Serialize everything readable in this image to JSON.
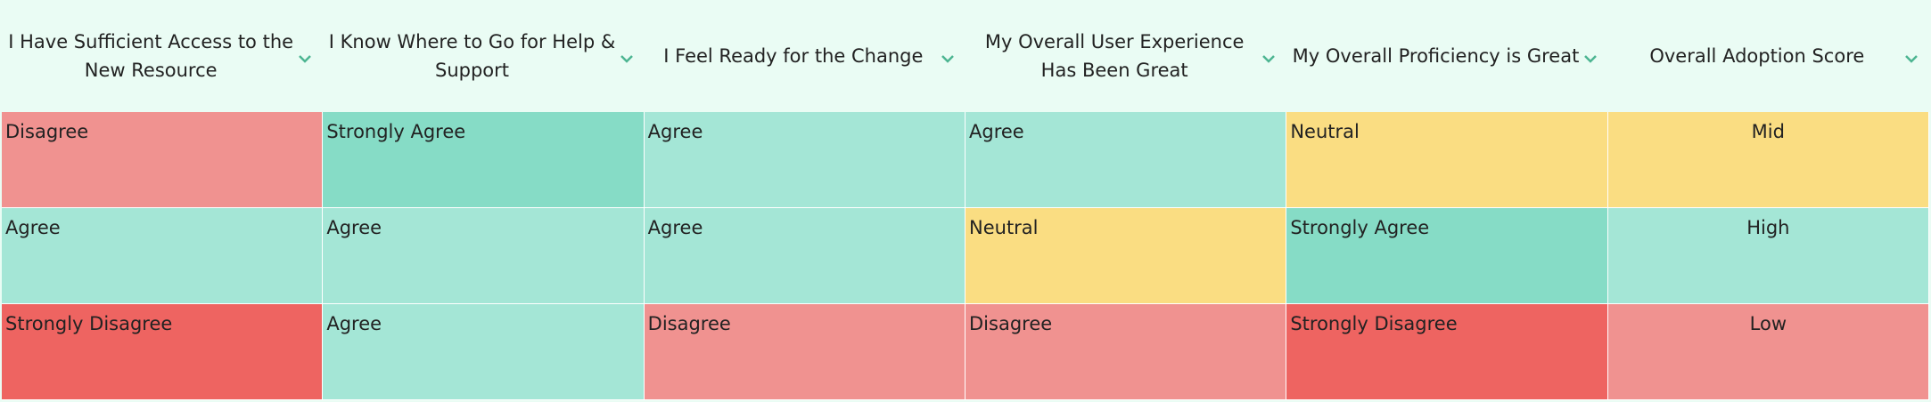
{
  "header": {
    "columns": [
      "I Have Sufficient Access to the New Resource",
      "I Know Where to Go for Help & Support",
      "I Feel Ready for the Change",
      "My Overall User Experience Has Been Great",
      "My Overall Proficiency is Great",
      "Overall Adoption Score"
    ]
  },
  "table": {
    "rows": [
      [
        {
          "text": "Disagree",
          "color": "#f09290"
        },
        {
          "text": "Strongly Agree",
          "color": "#86dcc6"
        },
        {
          "text": "Agree",
          "color": "#a4e6d6"
        },
        {
          "text": "Agree",
          "color": "#a4e6d6"
        },
        {
          "text": "Neutral",
          "color": "#fadd82"
        },
        {
          "text": "Mid",
          "color": "#fadd82"
        }
      ],
      [
        {
          "text": "Agree",
          "color": "#a4e6d6"
        },
        {
          "text": "Agree",
          "color": "#a4e6d6"
        },
        {
          "text": "Agree",
          "color": "#a4e6d6"
        },
        {
          "text": "Neutral",
          "color": "#fadd82"
        },
        {
          "text": "Strongly Agree",
          "color": "#86dcc6"
        },
        {
          "text": "High",
          "color": "#a4e6d6"
        }
      ],
      [
        {
          "text": "Strongly Disagree",
          "color": "#ee6461"
        },
        {
          "text": "Agree",
          "color": "#a4e6d6"
        },
        {
          "text": "Disagree",
          "color": "#f09290"
        },
        {
          "text": "Disagree",
          "color": "#f09290"
        },
        {
          "text": "Strongly Disagree",
          "color": "#ee6461"
        },
        {
          "text": "Low",
          "color": "#f09290"
        }
      ]
    ]
  }
}
